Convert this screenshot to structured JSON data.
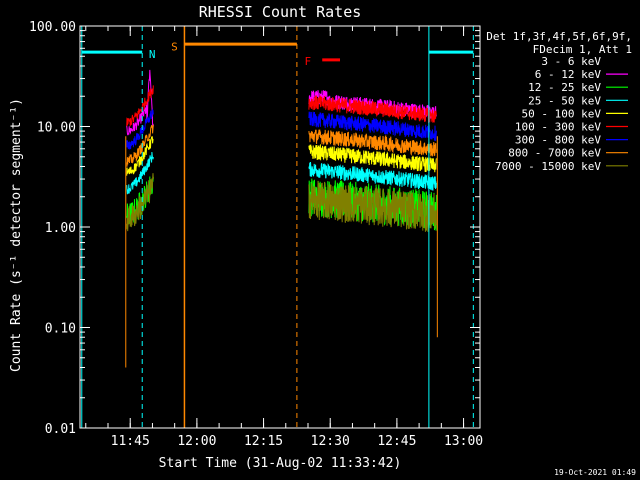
{
  "chart_data": {
    "type": "line",
    "title": "RHESSI Count Rates",
    "xlabel": "Start Time (31-Aug-02 11:33:42)",
    "ylabel": "Count Rate (s⁻¹ detector segment⁻¹)",
    "yscale": "log",
    "ylim": [
      0.01,
      100
    ],
    "xlim_minutes_after_start": [
      0,
      90
    ],
    "x_ticks": [
      "11:45",
      "12:00",
      "12:15",
      "12:30",
      "12:45",
      "13:00"
    ],
    "y_ticks": [
      "0.01",
      "0.10",
      "1.00",
      "10.00",
      "100.00"
    ],
    "legend_header": [
      "Det 1f,3f,4f,5f,6f,9f,",
      "FDecim 1, Att 1"
    ],
    "legend_position": "right",
    "series": [
      {
        "name": "3 - 6 keV",
        "color": "#000000",
        "level": 1.8,
        "pre": 1.1
      },
      {
        "name": "6 - 12 keV",
        "color": "#ff00ff",
        "level": 15.0,
        "pre": 9.0
      },
      {
        "name": "12 - 25 keV",
        "color": "#00ff00",
        "level": 1.6,
        "pre": 1.3
      },
      {
        "name": "25 - 50 keV",
        "color": "#00ffff",
        "level": 3.0,
        "pre": 2.4
      },
      {
        "name": "50 - 100 keV",
        "color": "#ffff00",
        "level": 4.5,
        "pre": 3.5
      },
      {
        "name": "100 - 300 keV",
        "color": "#ff0000",
        "level": 14.0,
        "pre": 11.0
      },
      {
        "name": "300 - 800 keV",
        "color": "#0000ff",
        "level": 9.5,
        "pre": 6.5
      },
      {
        "name": "800 - 7000 keV",
        "color": "#ff8800",
        "level": 6.5,
        "pre": 4.5
      },
      {
        "name": "7000 - 15000 keV",
        "color": "#808000",
        "level": 1.5,
        "pre": 1.2
      }
    ],
    "flags": [
      {
        "label": "N",
        "color": "#00ffff"
      },
      {
        "label": "S",
        "color": "#ff8800"
      },
      {
        "label": "F",
        "color": "#ff0000"
      }
    ],
    "timestamp": "19-Oct-2021 01:49"
  }
}
